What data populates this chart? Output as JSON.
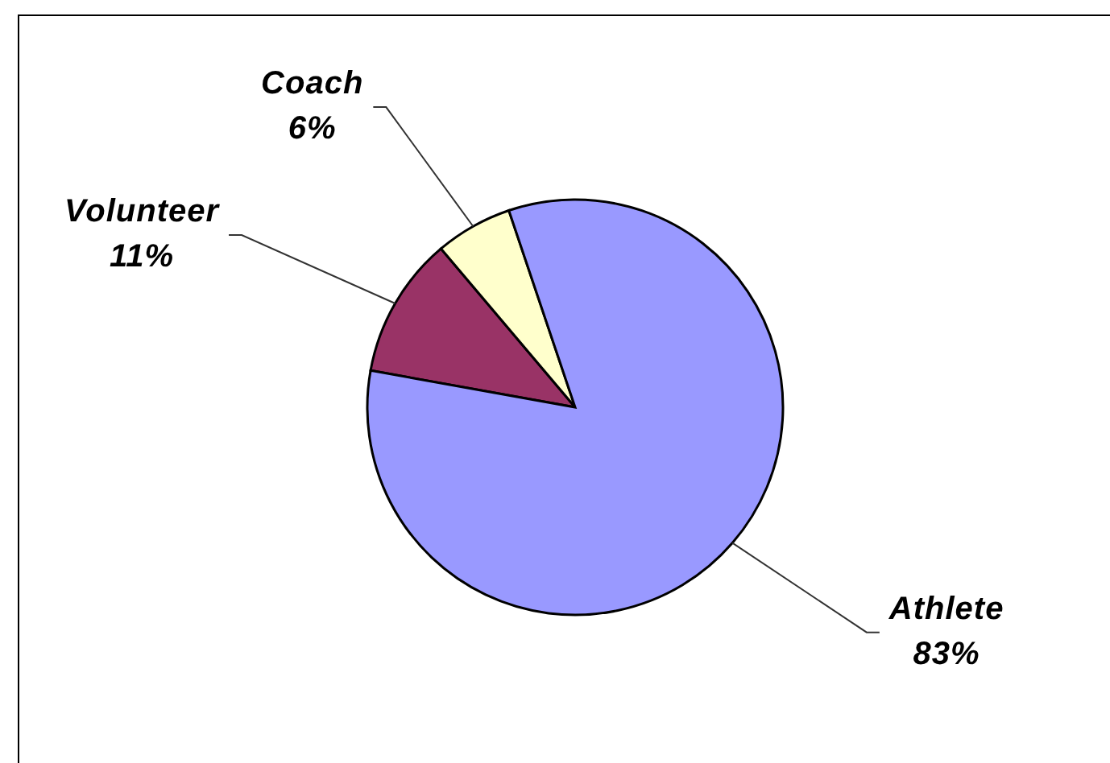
{
  "chart_data": {
    "type": "pie",
    "categories": [
      "Volunteer",
      "Coach",
      "Athlete"
    ],
    "values": [
      11,
      6,
      83
    ],
    "value_labels": [
      "11%",
      "6%",
      "83%"
    ],
    "colors": [
      "#993366",
      "#ffffcc",
      "#9999ff"
    ],
    "legend": false
  }
}
